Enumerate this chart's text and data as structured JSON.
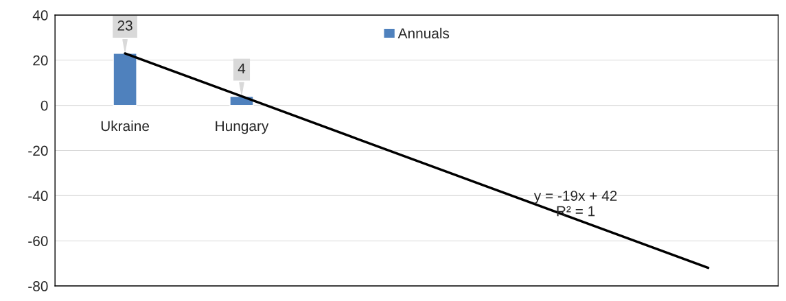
{
  "chart_data": {
    "type": "bar",
    "categories": [
      "Ukraine",
      "Hungary",
      null,
      null,
      null,
      null
    ],
    "series": [
      {
        "name": "Annuals",
        "color": "#4f81bd",
        "values": [
          23,
          4,
          null,
          null,
          null,
          null
        ],
        "value_labels": [
          "23",
          "4",
          null,
          null,
          null,
          null
        ]
      },
      {
        "type": "line",
        "color": "#000000",
        "values": [
          23,
          4,
          -15,
          -34,
          -53,
          -72
        ]
      }
    ],
    "ylim": [
      -80,
      40
    ],
    "yticks": [
      -80,
      -60,
      -40,
      -20,
      0,
      20,
      40
    ],
    "grid": "y",
    "legend": "top",
    "annotations": [
      "y = -19x + 42\nR² = 1"
    ]
  }
}
